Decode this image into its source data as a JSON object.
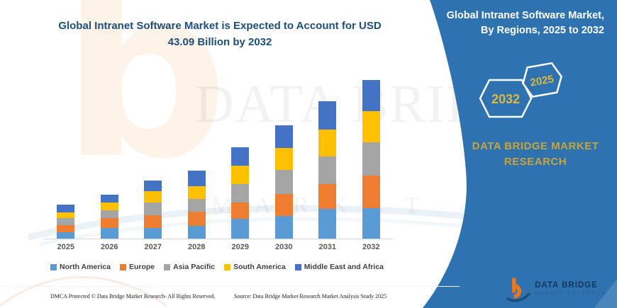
{
  "title": {
    "line1": "Global Intranet Software Market is Expected to Account for USD",
    "line2": "43.09 Billion by 2032"
  },
  "right_panel": {
    "heading_line1": "Global Intranet Software Market,",
    "heading_line2": "By Regions, 2025 to 2032",
    "hexagon_left": "2032",
    "hexagon_right": "2025",
    "brand": "DATA BRIDGE MARKET RESEARCH",
    "logo_name": "DATA BRIDGE",
    "logo_subtitle": "MARKET RESEARCH",
    "panel_color": "#2E73B0",
    "hexagon_text_color": "#D9B944"
  },
  "watermark": {
    "big_text": "DATA BRIDGE",
    "sub_text": "MARKET RESEARCH",
    "logo_letter": "b"
  },
  "footer": {
    "dmca": "DMCA Protected © Data Bridge Market Research-  All Rights Reserved.",
    "source": "Source: Data Bridge Market Research  Market Analysis Study 2025"
  },
  "chart_data": {
    "type": "bar",
    "stacked": true,
    "title": "Global Intranet Software Market, By Regions, 2025 to 2032",
    "unit": "USD Billion",
    "categories": [
      "2025",
      "2026",
      "2027",
      "2028",
      "2029",
      "2030",
      "2031",
      "2032"
    ],
    "series": [
      {
        "name": "North America",
        "color": "#5B9BD5",
        "values": [
          1.8,
          2.9,
          2.9,
          3.5,
          5.4,
          6.1,
          8.0,
          8.3
        ]
      },
      {
        "name": "Europe",
        "color": "#ED7D31",
        "values": [
          1.8,
          2.6,
          3.5,
          3.8,
          4.5,
          6.1,
          6.9,
          8.9
        ]
      },
      {
        "name": "Asia Pacific",
        "color": "#A5A5A5",
        "values": [
          1.9,
          2.2,
          3.5,
          3.5,
          4.9,
          6.4,
          7.4,
          9.0
        ]
      },
      {
        "name": "South America",
        "color": "#FFC000",
        "values": [
          1.7,
          2.2,
          2.9,
          3.5,
          5.0,
          6.1,
          7.4,
          8.5
        ]
      },
      {
        "name": "Middle East and Africa",
        "color": "#4472C4",
        "values": [
          2.1,
          2.1,
          2.9,
          4.2,
          5.0,
          6.0,
          7.6,
          8.4
        ]
      }
    ],
    "totals_estimate": [
      9.3,
      12.0,
      15.7,
      18.5,
      24.8,
      30.7,
      37.3,
      43.09
    ],
    "highlight_total_2032": "43.09",
    "ylim": [
      0,
      45
    ],
    "y_axis_visible": false,
    "grid": false,
    "legend_position": "bottom"
  }
}
